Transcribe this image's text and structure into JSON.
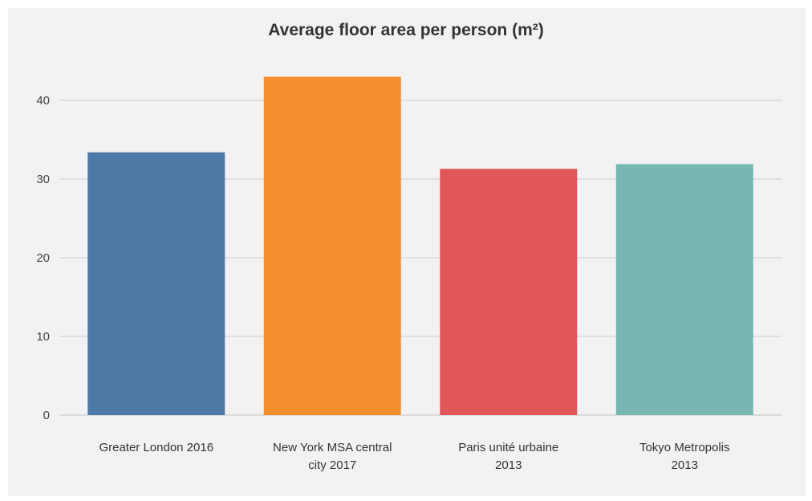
{
  "chart_data": {
    "type": "bar",
    "title": "Average floor area per person (m²)",
    "categories": [
      [
        "Greater London 2016"
      ],
      [
        "New York MSA central",
        "city 2017"
      ],
      [
        "Paris unité urbaine",
        "2013"
      ],
      [
        "Tokyo Metropolis",
        "2013"
      ]
    ],
    "values": [
      33.4,
      43.0,
      31.3,
      31.9
    ],
    "colors": [
      "#4e79a7",
      "#f28e2b",
      "#e15759",
      "#76b7b2"
    ],
    "yticks": [
      0,
      10,
      20,
      30,
      40
    ],
    "ylim": [
      0,
      45
    ],
    "grid": true,
    "xlabel": "",
    "ylabel": ""
  },
  "style": {
    "background": "#f2f2f2",
    "gridline": "#d3d3d3"
  }
}
